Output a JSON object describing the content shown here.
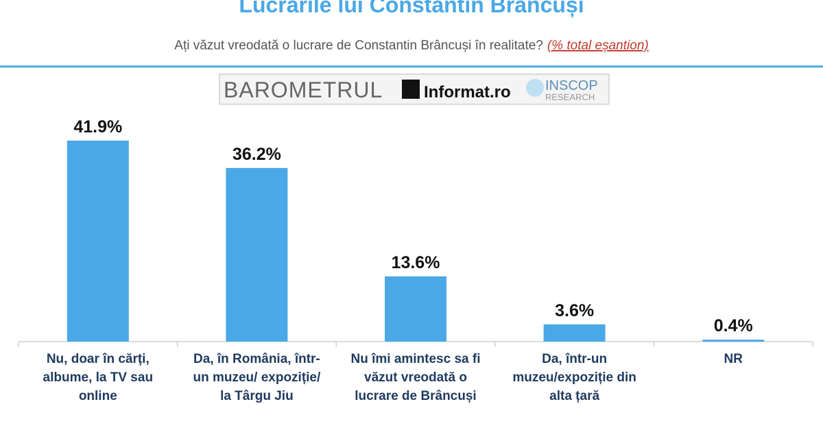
{
  "chart_data": {
    "type": "bar",
    "title": "Lucrările lui Constantin Brâncuși",
    "subtitle": "Ați văzut vreodată o lucrare de Constantin Brâncuși în realitate?",
    "subtitle_note": "(% total eșantion)",
    "logo": {
      "barometer": "BAROMETRUL",
      "partner": "Informat.ro",
      "institute": "INSCOP",
      "institute_sub": "RESEARCH"
    },
    "categories": [
      "Nu, doar în cărți, albume, la TV sau online",
      "Da, în România, într-un muzeu/ expoziție/ la Târgu Jiu",
      "Nu îmi amintesc sa fi văzut vreodată o lucrare de Brâncuși",
      "Da, într-un muzeu/expoziție din alta țară",
      "NR"
    ],
    "values": [
      41.9,
      36.2,
      13.6,
      3.6,
      0.4
    ],
    "value_labels": [
      "41.9%",
      "36.2%",
      "13.6%",
      "3.6%",
      "0.4%"
    ],
    "color": "#4aa8e6"
  }
}
